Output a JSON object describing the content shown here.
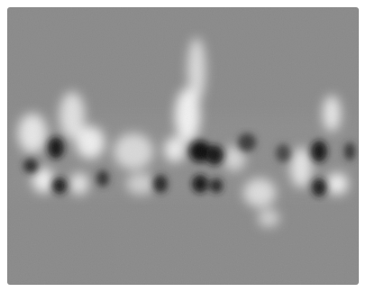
{
  "image": {
    "kind": "grayscale-micrograph",
    "icon": "image-icon",
    "colors": {
      "background": "#8a8a8a",
      "bright": "#f2f2f2",
      "dark": "#101010",
      "frame": "#ffffff"
    }
  }
}
